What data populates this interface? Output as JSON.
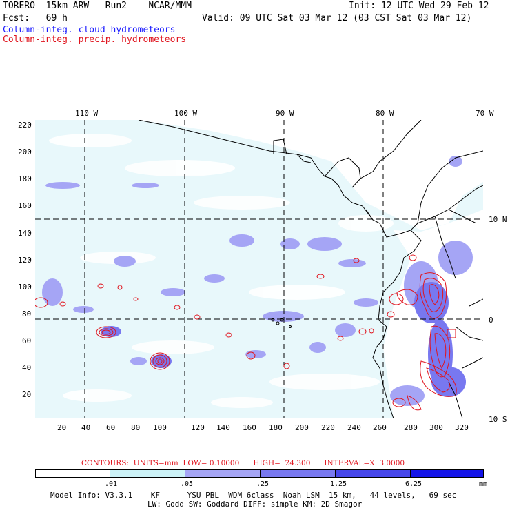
{
  "header": {
    "line1_left": "TORERO  15km ARW   Run2    NCAR/MMM",
    "line1_right": "Init: 12 UTC Wed 29 Feb 12",
    "line2_left": "Fcst:   69 h",
    "line2_right": "Valid: 09 UTC Sat 03 Mar 12 (03 CST Sat 03 Mar 12)",
    "field_cloud": "Column-integ. cloud hydrometeors",
    "field_precip": "Column-integ. precip. hydrometeors"
  },
  "colors": {
    "cloud_label": "#1a1aff",
    "precip_label": "#e0141e",
    "shade_1": "#ffffff",
    "shade_2": "#ccf2f7",
    "shade_3": "#a5a5f5",
    "shade_4": "#7878f0",
    "shade_5": "#4646ea",
    "shade_6": "#1414e8",
    "contour": "#e0141e",
    "coastline": "#000000"
  },
  "map": {
    "lon_labels": [
      "110 W",
      "100 W",
      "90 W",
      "80 W",
      "70 W"
    ],
    "lat_labels": [
      "10 N",
      "0",
      "10 S"
    ],
    "y_ticks": [
      "220",
      "200",
      "180",
      "160",
      "140",
      "120",
      "100",
      "80",
      "60",
      "40",
      "20"
    ],
    "x_ticks": [
      "20",
      "40",
      "60",
      "80",
      "100",
      "120",
      "140",
      "160",
      "180",
      "200",
      "220",
      "240",
      "260",
      "280",
      "300",
      "320"
    ]
  },
  "contour_info": {
    "text": "CONTOURS:  UNITS=mm  LOW= 0.10000      HIGH=  24.300      INTERVAL=X  3.0000"
  },
  "legend": {
    "labels": [
      ".01",
      ".05",
      ".25",
      "1.25",
      "6.25"
    ],
    "units": "mm"
  },
  "footer": {
    "line1": "Model Info: V3.3.1    KF      YSU PBL  WDM 6class  Noah LSM  15 km,   44 levels,   69 sec",
    "line2": "LW: Godd SW: Goddard DIFF: simple KM: 2D Smagor"
  }
}
